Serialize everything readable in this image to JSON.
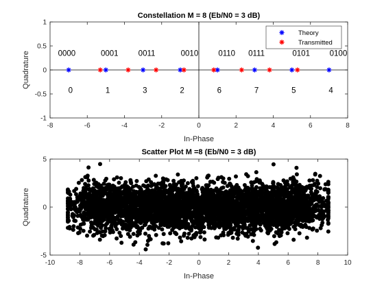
{
  "chart_data": [
    {
      "type": "scatter",
      "title": "Constellation M = 8 (Eb/N0 = 3 dB)",
      "xlabel": "In-Phase",
      "ylabel": "Quadrature",
      "xlim": [
        -8,
        8
      ],
      "ylim": [
        -1,
        1
      ],
      "xticks": [
        -8,
        -6,
        -4,
        -2,
        0,
        2,
        4,
        6,
        8
      ],
      "yticks": [
        -1,
        -0.5,
        0,
        0.5,
        1
      ],
      "grid": false,
      "legend_position": "top-right",
      "series": [
        {
          "name": "Theory",
          "color": "#0000ff",
          "marker": "asterisk",
          "x": [
            -7,
            -5,
            -3,
            -1,
            1,
            3,
            5,
            7
          ],
          "y": [
            0,
            0,
            0,
            0,
            0,
            0,
            0,
            0
          ]
        },
        {
          "name": "Transmitted",
          "color": "#ff0000",
          "marker": "asterisk",
          "x": [
            -5.3,
            -3.8,
            -2.3,
            -0.8,
            0.8,
            2.3,
            3.8,
            5.3
          ],
          "y": [
            0,
            0,
            0,
            0,
            0,
            0,
            0,
            0
          ]
        }
      ],
      "annotations": {
        "gray_labels": [
          {
            "text": "0000",
            "x": -7.1
          },
          {
            "text": "0001",
            "x": -4.8
          },
          {
            "text": "0011",
            "x": -2.8
          },
          {
            "text": "0010",
            "x": -0.5
          },
          {
            "text": "0110",
            "x": 1.5
          },
          {
            "text": "0111",
            "x": 3.1
          },
          {
            "text": "0101",
            "x": 5.5
          },
          {
            "text": "0100",
            "x": 7.5
          }
        ],
        "gray_labels_y": 0.35,
        "index_labels": [
          {
            "text": "0",
            "x": -6.9
          },
          {
            "text": "1",
            "x": -4.9
          },
          {
            "text": "3",
            "x": -2.9
          },
          {
            "text": "2",
            "x": -0.9
          },
          {
            "text": "6",
            "x": 1.1
          },
          {
            "text": "7",
            "x": 3.1
          },
          {
            "text": "5",
            "x": 5.1
          },
          {
            "text": "4",
            "x": 7.1
          }
        ],
        "index_labels_y": -0.42
      }
    },
    {
      "type": "scatter",
      "title": "Scatter Plot M =8 (Eb/N0 = 3 dB)",
      "xlabel": "In-Phase",
      "ylabel": "Quadrature",
      "xlim": [
        -10,
        10
      ],
      "ylim": [
        -5,
        5
      ],
      "xticks": [
        -10,
        -8,
        -6,
        -4,
        -2,
        0,
        2,
        4,
        6,
        8,
        10
      ],
      "yticks": [
        -5,
        0,
        5
      ],
      "grid": false,
      "series": [
        {
          "color": "#000000",
          "marker": "filled-circle",
          "cloud": {
            "x_range": [
              -8.8,
              8.7
            ],
            "y_range": [
              -4.4,
              4.5
            ],
            "centers": [
              -7,
              -5,
              -3,
              -1,
              1,
              3,
              5,
              7
            ],
            "noise_sigma": 1.0,
            "count": 4000
          }
        }
      ]
    }
  ]
}
